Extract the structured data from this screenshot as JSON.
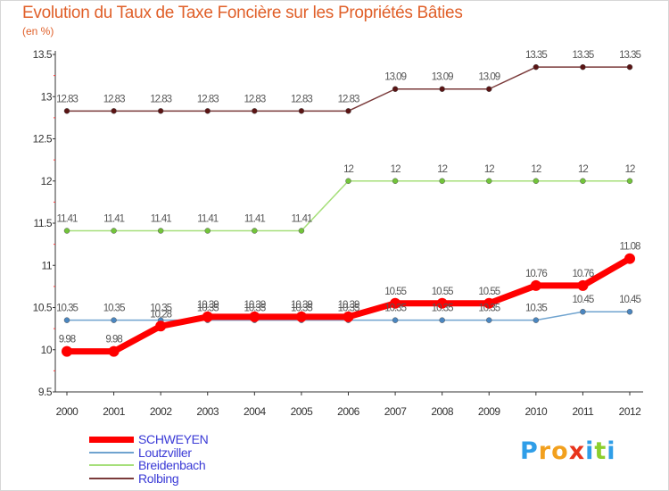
{
  "title": "Evolution du Taux de Taxe Foncière sur les Propriétés Bâties",
  "unit_label": "(en %)",
  "logo": {
    "letters": [
      "P",
      "r",
      "o",
      "x",
      "i",
      "t",
      "i"
    ],
    "colors": [
      "#2f9ee8",
      "#f2a01e",
      "#f2a01e",
      "#e8341c",
      "#2f9ee8",
      "#8ccf2e",
      "#2f9ee8"
    ]
  },
  "chart_data": {
    "type": "line",
    "title": "Evolution du Taux de Taxe Foncière sur les Propriétés Bâties",
    "ylabel": "(en %)",
    "xlabel": "",
    "categories": [
      "2000",
      "2001",
      "2002",
      "2003",
      "2004",
      "2005",
      "2006",
      "2007",
      "2008",
      "2009",
      "2010",
      "2011",
      "2012"
    ],
    "ylim": [
      9.5,
      13.5
    ],
    "yticks": [
      9.5,
      10,
      10.5,
      11,
      11.5,
      12,
      12.5,
      13,
      13.5
    ],
    "ytick_labels": [
      "9.5",
      "10",
      "10.5",
      "11",
      "11.5",
      "12",
      "12.5",
      "13",
      "13.5"
    ],
    "series": [
      {
        "name": "Rolbing",
        "color": "#7a3a3a",
        "marker": "#5a1414",
        "width": 1.5,
        "values": [
          12.83,
          12.83,
          12.83,
          12.83,
          12.83,
          12.83,
          12.83,
          13.09,
          13.09,
          13.09,
          13.35,
          13.35,
          13.35
        ],
        "labels": [
          "12.83",
          "12.83",
          "12.83",
          "12.83",
          "12.83",
          "12.83",
          "12.83",
          "13.09",
          "13.09",
          "13.09",
          "13.35",
          "13.35",
          "13.35"
        ]
      },
      {
        "name": "Breidenbach",
        "color": "#a6df7a",
        "marker": "#72c43a",
        "width": 1.5,
        "values": [
          11.41,
          11.41,
          11.41,
          11.41,
          11.41,
          11.41,
          12,
          12,
          12,
          12,
          12,
          12,
          12
        ],
        "labels": [
          "11.41",
          "11.41",
          "11.41",
          "11.41",
          "11.41",
          "11.41",
          "12",
          "12",
          "12",
          "12",
          "12",
          "12",
          "12"
        ]
      },
      {
        "name": "Loutzviller",
        "color": "#6fa3cf",
        "marker": "#4a86c0",
        "width": 1.5,
        "values": [
          10.35,
          10.35,
          10.35,
          10.35,
          10.35,
          10.35,
          10.35,
          10.35,
          10.35,
          10.35,
          10.35,
          10.45,
          10.45
        ],
        "labels": [
          "10.35",
          "10.35",
          "10.35",
          "10.35",
          "10.35",
          "10.35",
          "10.35",
          "10.35",
          "10.35",
          "10.35",
          "10.35",
          "10.45",
          "10.45"
        ]
      },
      {
        "name": "SCHWEYEN",
        "color": "#ff0000",
        "marker": "#ff0000",
        "width": 7,
        "values": [
          9.98,
          9.98,
          10.28,
          10.39,
          10.39,
          10.39,
          10.39,
          10.55,
          10.55,
          10.55,
          10.76,
          10.76,
          11.08
        ],
        "labels": [
          "9.98",
          "9.98",
          "10.28",
          "10.39",
          "10.39",
          "10.39",
          "10.39",
          "10.55",
          "10.55",
          "10.55",
          "10.76",
          "10.76",
          "11.08"
        ]
      }
    ],
    "legend": [
      "SCHWEYEN",
      "Loutzviller",
      "Breidenbach",
      "Rolbing"
    ],
    "grid": false,
    "legend_position": "bottom-left"
  }
}
